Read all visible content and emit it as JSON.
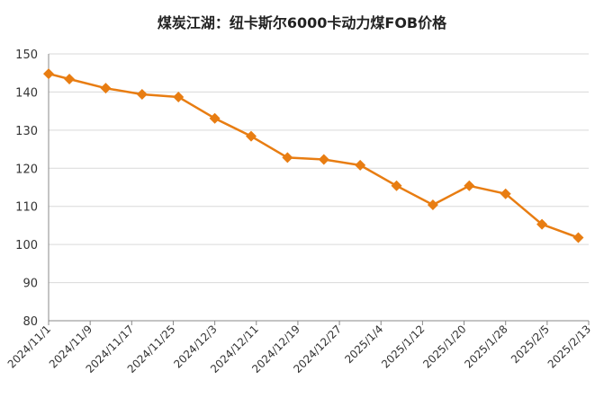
{
  "chart_data": {
    "type": "line",
    "title": "煤炭江湖：纽卡斯尔6000卡动力煤FOB价格",
    "xlabel": "",
    "ylabel": "",
    "ylim": [
      80,
      150
    ],
    "yticks": [
      80,
      90,
      100,
      110,
      120,
      130,
      140,
      150
    ],
    "x": [
      "2024/11/1",
      "2024/11/5",
      "2024/11/12",
      "2024/11/19",
      "2024/11/26",
      "2024/12/3",
      "2024/12/10",
      "2024/12/17",
      "2024/12/24",
      "2024/12/31",
      "2025/1/7",
      "2025/1/14",
      "2025/1/21",
      "2025/1/28",
      "2025/2/4",
      "2025/2/11"
    ],
    "xticks": [
      "2024/11/1",
      "2024/11/9",
      "2024/11/17",
      "2024/11/25",
      "2024/12/3",
      "2024/12/11",
      "2024/12/19",
      "2024/12/27",
      "2025/1/4",
      "2025/1/12",
      "2025/1/20",
      "2025/1/28",
      "2025/2/5",
      "2025/2/13"
    ],
    "series": [
      {
        "values": [
          144.8,
          143.4,
          141.0,
          139.4,
          138.7,
          133.1,
          128.4,
          122.8,
          122.3,
          120.8,
          115.4,
          110.4,
          115.4,
          113.3,
          105.3,
          101.8
        ]
      }
    ],
    "grid": true,
    "legend": "none",
    "colors": {
      "line": "#E87D12",
      "marker": "#E87D12",
      "grid": "#D9D9D9",
      "axis": "#888888"
    }
  }
}
